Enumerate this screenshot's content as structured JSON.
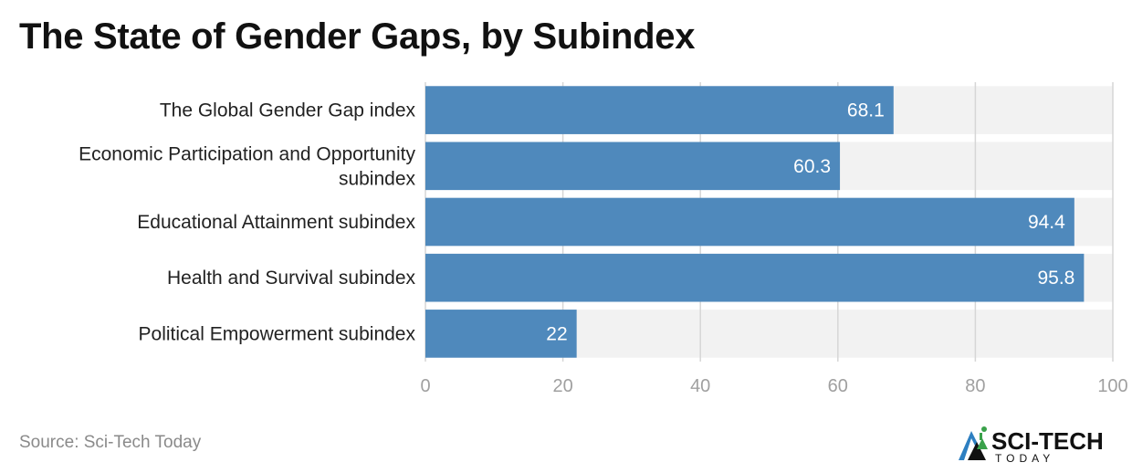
{
  "chart_data": {
    "type": "bar",
    "orientation": "horizontal",
    "title": "The State of Gender Gaps, by Subindex",
    "categories": [
      "The Global Gender Gap index",
      "Economic Participation and Opportunity subindex",
      "Educational Attainment subindex",
      "Health and Survival subindex",
      "Political Empowerment subindex"
    ],
    "values": [
      68.1,
      60.3,
      94.4,
      95.8,
      22
    ],
    "data_labels": [
      "68.1",
      "60.3",
      "94.4",
      "95.8",
      "22"
    ],
    "xlim": [
      0,
      100
    ],
    "x_ticks": [
      0,
      20,
      40,
      60,
      80,
      100
    ],
    "grid": true,
    "bar_color": "#4f89bc",
    "track_color": "#f2f2f2"
  },
  "source": "Source: Sci-Tech Today",
  "brand": {
    "name": "SCI-TECH",
    "tagline": "TODAY",
    "colors": {
      "primary": "#111111",
      "accent": "#3aa14a",
      "secondary": "#2d7fc1"
    },
    "icon": "mountain-tech-logo-icon"
  }
}
